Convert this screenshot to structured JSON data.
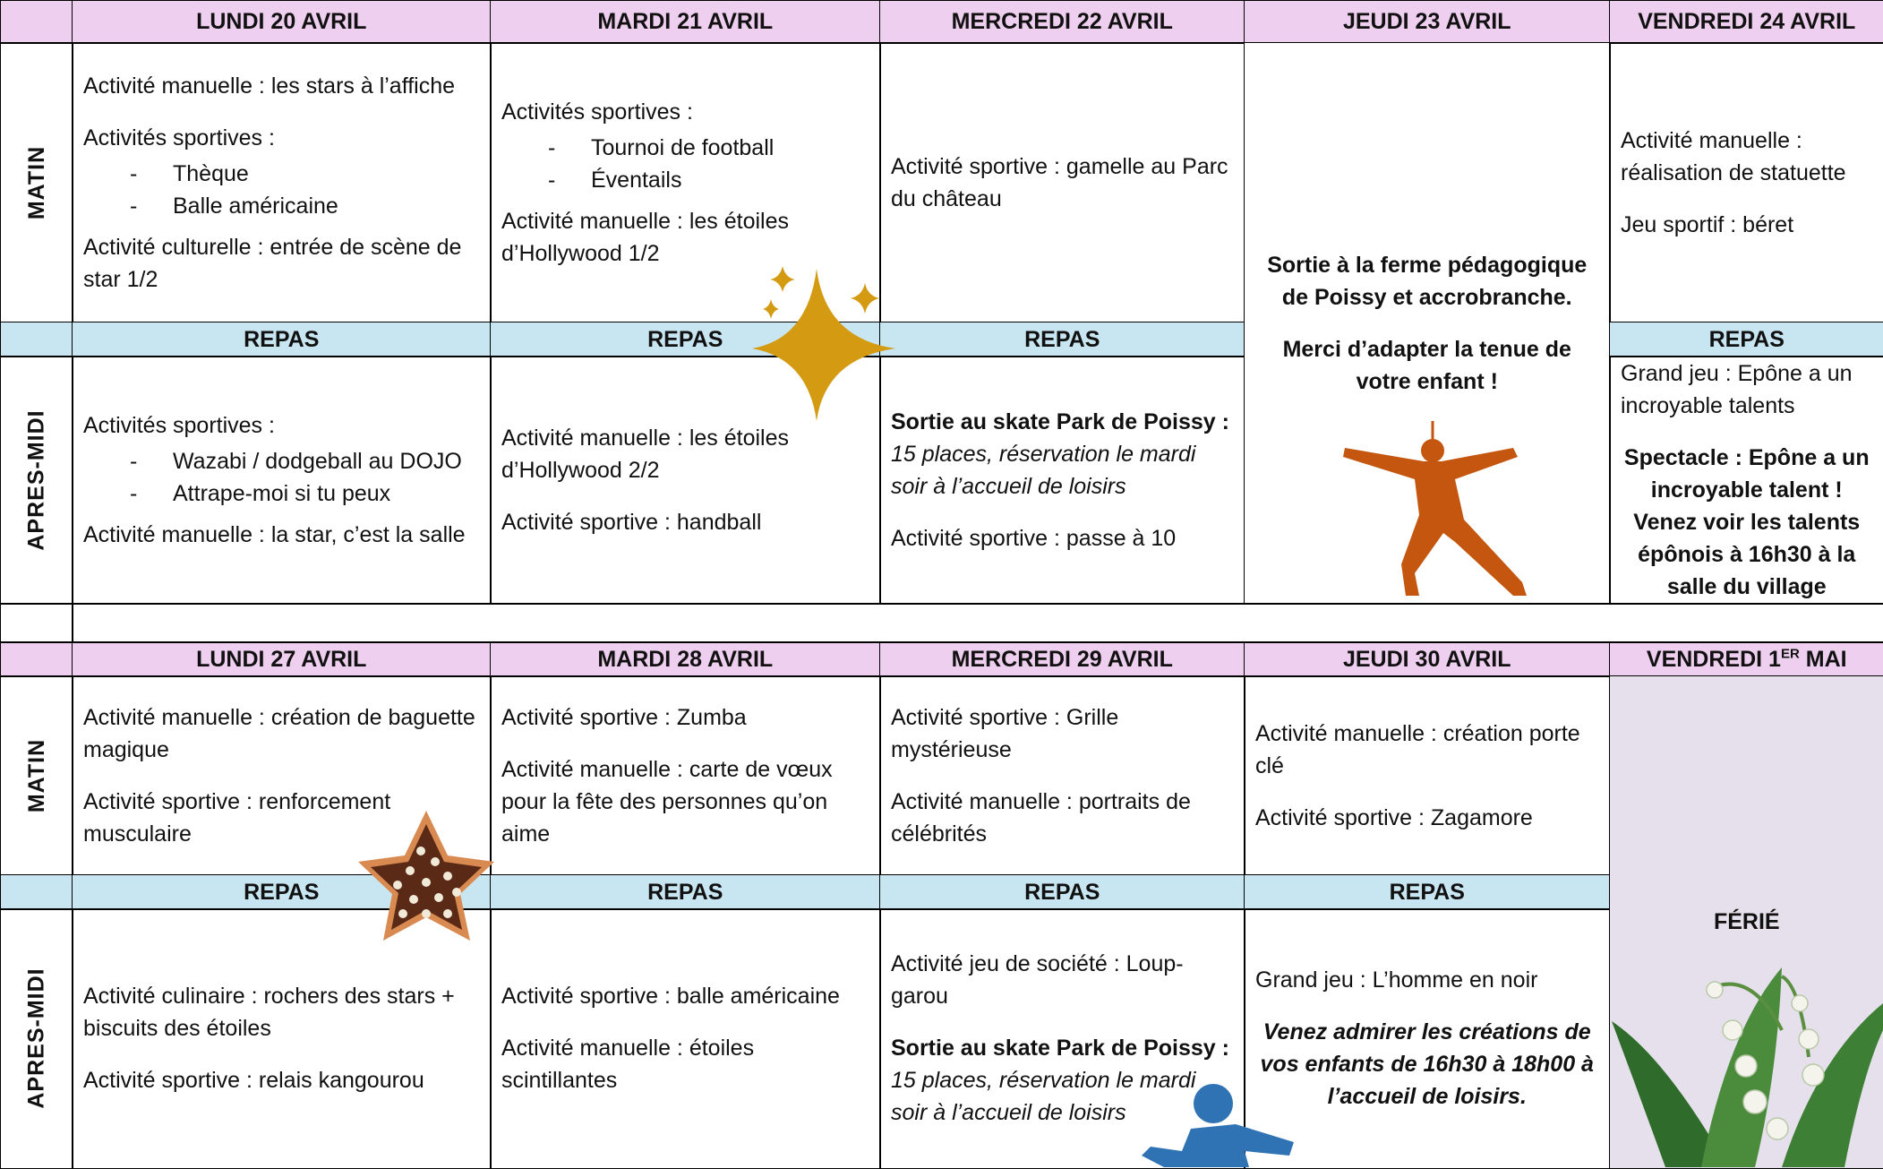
{
  "weeks": [
    {
      "row_labels": [
        "MATIN",
        "APRES-MIDI"
      ],
      "days": [
        {
          "header": "LUNDI 20 AVRIL",
          "morning": [
            "Activité manuelle : les stars à l’affiche",
            "Activités sportives :",
            {
              "list": [
                "Thèque",
                "Balle américaine"
              ]
            },
            "Activité culturelle : entrée de scène de star 1/2"
          ],
          "lunch": "REPAS",
          "afternoon": [
            "Activités sportives :",
            {
              "list": [
                "Wazabi / dodgeball au DOJO",
                "Attrape-moi si tu peux"
              ]
            },
            "Activité manuelle : la star, c’est la salle"
          ]
        },
        {
          "header": "MARDI 21 AVRIL",
          "morning": [
            "Activités sportives :",
            {
              "list": [
                "Tournoi de football",
                "Éventails"
              ]
            },
            "Activité manuelle : les étoiles d’Hollywood 1/2"
          ],
          "lunch": "REPAS",
          "afternoon": [
            "Activité manuelle : les étoiles d’Hollywood 2/2",
            "Activité sportive : handball"
          ]
        },
        {
          "header": "MERCREDI 22 AVRIL",
          "morning": [
            "Activité sportive : gamelle au Parc du château"
          ],
          "lunch": "REPAS",
          "afternoon": [
            {
              "parts": [
                {
                  "text": "Sortie au skate Park de Poissy :",
                  "style": "bold"
                },
                {
                  "text": " 15 places, réservation le mardi soir à l’accueil de loisirs",
                  "style": "italic"
                }
              ]
            },
            "Activité sportive : passe à 10"
          ]
        },
        {
          "header": "JEUDI 23 AVRIL",
          "all_day": [
            {
              "text": "Sortie à la ferme pédagogique de Poissy et accrobranche.",
              "style": "bold center"
            },
            {
              "text": "Merci d’adapter la tenue de votre enfant !",
              "style": "bold center"
            }
          ],
          "background": "#ffffff"
        },
        {
          "header": "VENDREDI 24 AVRIL",
          "morning": [
            "Activité manuelle : réalisation de statuette",
            "Jeu sportif : béret"
          ],
          "lunch": "REPAS",
          "afternoon": [
            "Grand jeu : Epône a un incroyable talents",
            {
              "text": "Spectacle : Epône a un incroyable talent ! Venez voir les talents épônois à 16h30 à la salle du village",
              "style": "bold center"
            }
          ]
        }
      ]
    },
    {
      "row_labels": [
        "MATIN",
        "APRES-MIDI"
      ],
      "days": [
        {
          "header": "LUNDI 27 AVRIL",
          "morning": [
            "Activité manuelle : création de baguette magique",
            "Activité sportive : renforcement musculaire"
          ],
          "lunch": "REPAS",
          "afternoon": [
            "Activité culinaire : rochers des stars + biscuits des étoiles",
            "Activité sportive : relais kangourou"
          ]
        },
        {
          "header": "MARDI 28 AVRIL",
          "morning": [
            "Activité sportive : Zumba",
            "Activité manuelle : carte de vœux pour la fête des personnes qu’on aime"
          ],
          "lunch": "REPAS",
          "afternoon": [
            "Activité sportive : balle américaine",
            "Activité manuelle : étoiles scintillantes"
          ]
        },
        {
          "header": "MERCREDI 29 AVRIL",
          "morning": [
            "Activité sportive : Grille mystérieuse",
            "Activité manuelle : portraits de célébrités"
          ],
          "lunch": "REPAS",
          "afternoon": [
            "Activité jeu de société : Loup-garou",
            {
              "parts": [
                {
                  "text": " Sortie au skate Park de Poissy :",
                  "style": "bold"
                },
                {
                  "text": " 15 places, réservation le mardi soir à l’accueil de loisirs",
                  "style": "italic"
                }
              ]
            }
          ]
        },
        {
          "header": "JEUDI 30 AVRIL",
          "morning": [
            "Activité manuelle :  création porte clé",
            "Activité sportive : Zagamore"
          ],
          "lunch": "REPAS",
          "afternoon": [
            "Grand jeu : L’homme en noir",
            {
              "text": "Venez admirer les créations de vos enfants de 16h30 à 18h00 à l’accueil de loisirs.",
              "style": "bold italic center"
            }
          ]
        },
        {
          "header": {
            "parts": [
              {
                "text": "VENDREDI 1",
                "style": "bold"
              },
              {
                "text": "ER",
                "style": "sup"
              },
              {
                "text": " MAI",
                "style": "bold"
              }
            ]
          },
          "all_day": [
            {
              "text": "FÉRIÉ",
              "style": "bold center"
            }
          ],
          "background": "#e6e0ec"
        }
      ]
    }
  ]
}
